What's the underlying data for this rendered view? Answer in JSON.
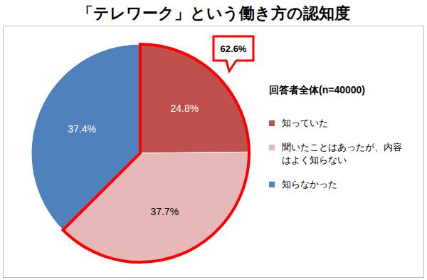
{
  "chart_data": {
    "type": "pie",
    "title": "「テレワーク」という働き方の認知度",
    "legend_title": "回答者全体(n=40000)",
    "annotation": "62.6%",
    "categories": [
      "知っていた",
      "聞いたことはあったが、内容はよく知らない",
      "知らなかった"
    ],
    "values": [
      24.8,
      37.7,
      37.4
    ],
    "value_labels": [
      "24.8%",
      "37.7%",
      "37.4%"
    ],
    "colors": [
      "#c0504d",
      "#e6b9b8",
      "#4f81bd"
    ],
    "data_labels": true,
    "legend": "right"
  }
}
